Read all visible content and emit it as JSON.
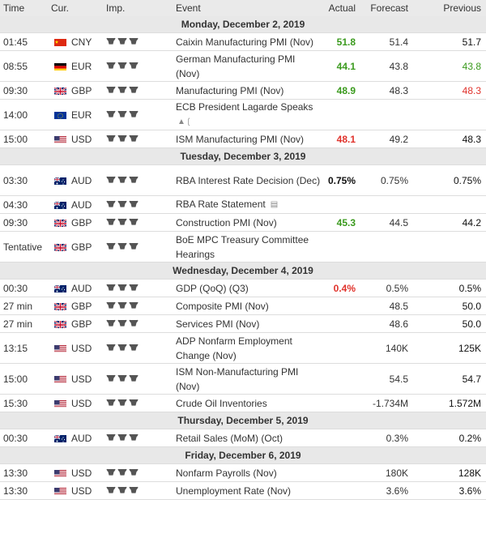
{
  "headers": {
    "time": "Time",
    "cur": "Cur.",
    "imp": "Imp.",
    "event": "Event",
    "actual": "Actual",
    "forecast": "Forecast",
    "previous": "Previous"
  },
  "days": [
    {
      "label": "Monday, December 2, 2019",
      "events": [
        {
          "time": "01:45",
          "flag": "cn",
          "cur": "CNY",
          "event": "Caixin Manufacturing PMI (Nov)",
          "actual": "51.8",
          "actual_color": "green",
          "forecast": "51.4",
          "previous": "51.7",
          "previous_color": "black",
          "lines": 1
        },
        {
          "time": "08:55",
          "flag": "de",
          "cur": "EUR",
          "event": "German Manufacturing PMI (Nov)",
          "actual": "44.1",
          "actual_color": "green",
          "forecast": "43.8",
          "previous": "43.8",
          "previous_color": "green",
          "lines": 2
        },
        {
          "time": "09:30",
          "flag": "gb",
          "cur": "GBP",
          "event": "Manufacturing PMI (Nov)",
          "actual": "48.9",
          "actual_color": "green",
          "forecast": "48.3",
          "previous": "48.3",
          "previous_color": "red",
          "lines": 1
        },
        {
          "time": "14:00",
          "flag": "eu",
          "cur": "EUR",
          "event": "ECB President Lagarde Speaks",
          "icon": "speaker-icon",
          "actual": "",
          "forecast": "",
          "previous": "",
          "lines": 2
        },
        {
          "time": "15:00",
          "flag": "us",
          "cur": "USD",
          "event": "ISM Manufacturing PMI (Nov)",
          "actual": "48.1",
          "actual_color": "red",
          "forecast": "49.2",
          "previous": "48.3",
          "previous_color": "black",
          "lines": 1
        }
      ]
    },
    {
      "label": "Tuesday, December 3, 2019",
      "events": [
        {
          "time": "03:30",
          "flag": "au",
          "cur": "AUD",
          "event": "RBA Interest Rate Decision (Dec)",
          "actual": "0.75%",
          "actual_color": "black",
          "forecast": "0.75%",
          "previous": "0.75%",
          "previous_color": "black",
          "lines": 2
        },
        {
          "time": "04:30",
          "flag": "au",
          "cur": "AUD",
          "event": "RBA Rate Statement",
          "icon": "document-icon",
          "actual": "",
          "forecast": "",
          "previous": "",
          "lines": 1
        },
        {
          "time": "09:30",
          "flag": "gb",
          "cur": "GBP",
          "event": "Construction PMI (Nov)",
          "actual": "45.3",
          "actual_color": "green",
          "forecast": "44.5",
          "previous": "44.2",
          "previous_color": "black",
          "lines": 1
        },
        {
          "time": "Tentative",
          "flag": "gb",
          "cur": "GBP",
          "event": "BoE MPC Treasury Committee Hearings",
          "actual": "",
          "forecast": "",
          "previous": "",
          "lines": 2
        }
      ]
    },
    {
      "label": "Wednesday, December 4, 2019",
      "events": [
        {
          "time": "00:30",
          "flag": "au",
          "cur": "AUD",
          "event": "GDP (QoQ) (Q3)",
          "actual": "0.4%",
          "actual_color": "red",
          "forecast": "0.5%",
          "previous": "0.5%",
          "previous_color": "black",
          "lines": 1
        },
        {
          "time": "27 min",
          "flag": "gb",
          "cur": "GBP",
          "event": "Composite PMI (Nov)",
          "actual": "",
          "forecast": "48.5",
          "previous": "50.0",
          "previous_color": "black",
          "lines": 1
        },
        {
          "time": "27 min",
          "flag": "gb",
          "cur": "GBP",
          "event": "Services PMI (Nov)",
          "actual": "",
          "forecast": "48.6",
          "previous": "50.0",
          "previous_color": "black",
          "lines": 1
        },
        {
          "time": "13:15",
          "flag": "us",
          "cur": "USD",
          "event": "ADP Nonfarm Employment Change (Nov)",
          "actual": "",
          "forecast": "140K",
          "previous": "125K",
          "previous_color": "black",
          "lines": 2
        },
        {
          "time": "15:00",
          "flag": "us",
          "cur": "USD",
          "event": "ISM Non-Manufacturing PMI (Nov)",
          "actual": "",
          "forecast": "54.5",
          "previous": "54.7",
          "previous_color": "black",
          "lines": 2
        },
        {
          "time": "15:30",
          "flag": "us",
          "cur": "USD",
          "event": "Crude Oil Inventories",
          "actual": "",
          "forecast": "-1.734M",
          "previous": "1.572M",
          "previous_color": "black",
          "lines": 1
        }
      ]
    },
    {
      "label": "Thursday, December 5, 2019",
      "events": [
        {
          "time": "00:30",
          "flag": "au",
          "cur": "AUD",
          "event": "Retail Sales (MoM) (Oct)",
          "actual": "",
          "forecast": "0.3%",
          "previous": "0.2%",
          "previous_color": "black",
          "lines": 1
        }
      ]
    },
    {
      "label": "Friday, December 6, 2019",
      "events": [
        {
          "time": "13:30",
          "flag": "us",
          "cur": "USD",
          "event": "Nonfarm Payrolls (Nov)",
          "actual": "",
          "forecast": "180K",
          "previous": "128K",
          "previous_color": "black",
          "lines": 1
        },
        {
          "time": "13:30",
          "flag": "us",
          "cur": "USD",
          "event": "Unemployment Rate (Nov)",
          "actual": "",
          "forecast": "3.6%",
          "previous": "3.6%",
          "previous_color": "black",
          "lines": 1
        }
      ]
    }
  ],
  "importance_glyph": "♈♈♈",
  "colors": {
    "green": "#3a9a1d",
    "red": "#e0322b",
    "header_bg": "#eaeaea",
    "day_bg": "#e8e8e8"
  }
}
